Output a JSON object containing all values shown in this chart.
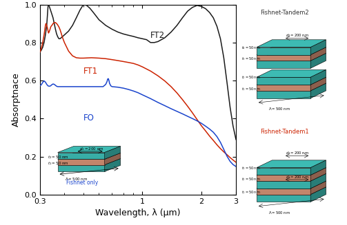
{
  "xlabel": "Wavelength, λ (μm)",
  "ylabel": "Absorptnace",
  "xlim": [
    0.3,
    3.0
  ],
  "ylim": [
    0.0,
    1.0
  ],
  "yticks": [
    0.0,
    0.2,
    0.4,
    0.6,
    0.8,
    1.0
  ],
  "xtick_vals": [
    0.3,
    1.0,
    2.0,
    3.0
  ],
  "xtick_labels": [
    "0.3",
    "1",
    "2",
    "3"
  ],
  "line_FT2_color": "#1a1a1a",
  "line_FT1_color": "#cc2200",
  "line_FO_color": "#1a44cc",
  "label_FT2": "FT2",
  "label_FT1": "FT1",
  "label_FO": "FO",
  "label_fishnet": "Fishnet only",
  "label_tandem2": "Fishnet-Tandem2",
  "label_tandem1": "Fishnet-Tandem1",
  "tandem2_color": "#333333",
  "tandem1_color": "#cc2200",
  "fishnet_label_color": "#1a44cc",
  "teal_color": [
    0.22,
    0.68,
    0.65
  ],
  "salmon_color": [
    0.76,
    0.52,
    0.42
  ],
  "FT2_pts": [
    [
      0.3,
      0.75
    ],
    [
      0.305,
      0.76
    ],
    [
      0.31,
      0.775
    ],
    [
      0.315,
      0.8
    ],
    [
      0.32,
      0.84
    ],
    [
      0.325,
      0.89
    ],
    [
      0.328,
      0.95
    ],
    [
      0.33,
      0.99
    ],
    [
      0.332,
      1.0
    ],
    [
      0.335,
      0.99
    ],
    [
      0.34,
      0.97
    ],
    [
      0.345,
      0.95
    ],
    [
      0.35,
      0.93
    ],
    [
      0.355,
      0.9
    ],
    [
      0.36,
      0.87
    ],
    [
      0.365,
      0.845
    ],
    [
      0.37,
      0.83
    ],
    [
      0.375,
      0.82
    ],
    [
      0.38,
      0.82
    ],
    [
      0.385,
      0.825
    ],
    [
      0.39,
      0.83
    ],
    [
      0.4,
      0.84
    ],
    [
      0.42,
      0.86
    ],
    [
      0.44,
      0.89
    ],
    [
      0.46,
      0.93
    ],
    [
      0.48,
      0.97
    ],
    [
      0.5,
      1.0
    ],
    [
      0.52,
      0.995
    ],
    [
      0.54,
      0.98
    ],
    [
      0.56,
      0.96
    ],
    [
      0.58,
      0.94
    ],
    [
      0.6,
      0.92
    ],
    [
      0.65,
      0.89
    ],
    [
      0.7,
      0.87
    ],
    [
      0.75,
      0.855
    ],
    [
      0.8,
      0.845
    ],
    [
      0.85,
      0.838
    ],
    [
      0.9,
      0.832
    ],
    [
      0.95,
      0.825
    ],
    [
      1.0,
      0.82
    ],
    [
      1.05,
      0.815
    ],
    [
      1.1,
      0.8
    ],
    [
      1.15,
      0.8
    ],
    [
      1.2,
      0.805
    ],
    [
      1.3,
      0.825
    ],
    [
      1.4,
      0.855
    ],
    [
      1.5,
      0.89
    ],
    [
      1.6,
      0.93
    ],
    [
      1.7,
      0.965
    ],
    [
      1.8,
      0.985
    ],
    [
      1.9,
      0.995
    ],
    [
      2.0,
      0.99
    ],
    [
      2.1,
      0.978
    ],
    [
      2.2,
      0.958
    ],
    [
      2.3,
      0.93
    ],
    [
      2.4,
      0.885
    ],
    [
      2.5,
      0.82
    ],
    [
      2.6,
      0.72
    ],
    [
      2.7,
      0.59
    ],
    [
      2.8,
      0.46
    ],
    [
      2.9,
      0.36
    ],
    [
      3.0,
      0.29
    ]
  ],
  "FT1_pts": [
    [
      0.3,
      0.75
    ],
    [
      0.305,
      0.77
    ],
    [
      0.31,
      0.8
    ],
    [
      0.315,
      0.84
    ],
    [
      0.318,
      0.87
    ],
    [
      0.32,
      0.89
    ],
    [
      0.322,
      0.9
    ],
    [
      0.325,
      0.89
    ],
    [
      0.328,
      0.875
    ],
    [
      0.33,
      0.862
    ],
    [
      0.332,
      0.85
    ],
    [
      0.334,
      0.855
    ],
    [
      0.336,
      0.862
    ],
    [
      0.338,
      0.87
    ],
    [
      0.34,
      0.88
    ],
    [
      0.342,
      0.885
    ],
    [
      0.345,
      0.89
    ],
    [
      0.348,
      0.895
    ],
    [
      0.35,
      0.9
    ],
    [
      0.355,
      0.905
    ],
    [
      0.36,
      0.905
    ],
    [
      0.365,
      0.9
    ],
    [
      0.37,
      0.892
    ],
    [
      0.375,
      0.882
    ],
    [
      0.38,
      0.868
    ],
    [
      0.385,
      0.85
    ],
    [
      0.39,
      0.83
    ],
    [
      0.4,
      0.8
    ],
    [
      0.42,
      0.755
    ],
    [
      0.44,
      0.73
    ],
    [
      0.46,
      0.72
    ],
    [
      0.48,
      0.718
    ],
    [
      0.5,
      0.718
    ],
    [
      0.55,
      0.72
    ],
    [
      0.6,
      0.718
    ],
    [
      0.65,
      0.715
    ],
    [
      0.7,
      0.71
    ],
    [
      0.75,
      0.705
    ],
    [
      0.8,
      0.7
    ],
    [
      0.85,
      0.695
    ],
    [
      0.9,
      0.69
    ],
    [
      0.95,
      0.682
    ],
    [
      1.0,
      0.672
    ],
    [
      1.1,
      0.65
    ],
    [
      1.2,
      0.625
    ],
    [
      1.3,
      0.598
    ],
    [
      1.4,
      0.568
    ],
    [
      1.5,
      0.535
    ],
    [
      1.6,
      0.5
    ],
    [
      1.7,
      0.465
    ],
    [
      1.8,
      0.43
    ],
    [
      1.9,
      0.395
    ],
    [
      2.0,
      0.362
    ],
    [
      2.1,
      0.335
    ],
    [
      2.2,
      0.308
    ],
    [
      2.3,
      0.285
    ],
    [
      2.4,
      0.262
    ],
    [
      2.5,
      0.242
    ],
    [
      2.6,
      0.225
    ],
    [
      2.7,
      0.21
    ],
    [
      2.8,
      0.195
    ],
    [
      2.9,
      0.182
    ],
    [
      3.0,
      0.17
    ]
  ],
  "FO_pts": [
    [
      0.3,
      0.572
    ],
    [
      0.305,
      0.578
    ],
    [
      0.31,
      0.59
    ],
    [
      0.315,
      0.598
    ],
    [
      0.32,
      0.592
    ],
    [
      0.325,
      0.58
    ],
    [
      0.33,
      0.572
    ],
    [
      0.335,
      0.57
    ],
    [
      0.34,
      0.572
    ],
    [
      0.345,
      0.578
    ],
    [
      0.35,
      0.582
    ],
    [
      0.355,
      0.58
    ],
    [
      0.36,
      0.575
    ],
    [
      0.365,
      0.57
    ],
    [
      0.37,
      0.568
    ],
    [
      0.375,
      0.568
    ],
    [
      0.38,
      0.568
    ],
    [
      0.39,
      0.568
    ],
    [
      0.4,
      0.568
    ],
    [
      0.42,
      0.568
    ],
    [
      0.44,
      0.568
    ],
    [
      0.46,
      0.568
    ],
    [
      0.48,
      0.568
    ],
    [
      0.5,
      0.568
    ],
    [
      0.55,
      0.568
    ],
    [
      0.6,
      0.568
    ],
    [
      0.63,
      0.568
    ],
    [
      0.65,
      0.58
    ],
    [
      0.66,
      0.595
    ],
    [
      0.665,
      0.608
    ],
    [
      0.67,
      0.61
    ],
    [
      0.675,
      0.6
    ],
    [
      0.68,
      0.585
    ],
    [
      0.69,
      0.572
    ],
    [
      0.7,
      0.568
    ],
    [
      0.75,
      0.565
    ],
    [
      0.8,
      0.56
    ],
    [
      0.85,
      0.553
    ],
    [
      0.9,
      0.545
    ],
    [
      0.95,
      0.536
    ],
    [
      1.0,
      0.525
    ],
    [
      1.1,
      0.505
    ],
    [
      1.2,
      0.485
    ],
    [
      1.3,
      0.468
    ],
    [
      1.4,
      0.452
    ],
    [
      1.5,
      0.438
    ],
    [
      1.6,
      0.425
    ],
    [
      1.7,
      0.412
    ],
    [
      1.8,
      0.4
    ],
    [
      1.9,
      0.388
    ],
    [
      2.0,
      0.375
    ],
    [
      2.1,
      0.36
    ],
    [
      2.2,
      0.345
    ],
    [
      2.3,
      0.328
    ],
    [
      2.4,
      0.305
    ],
    [
      2.5,
      0.275
    ],
    [
      2.6,
      0.238
    ],
    [
      2.7,
      0.202
    ],
    [
      2.8,
      0.175
    ],
    [
      2.9,
      0.158
    ],
    [
      3.0,
      0.148
    ]
  ]
}
